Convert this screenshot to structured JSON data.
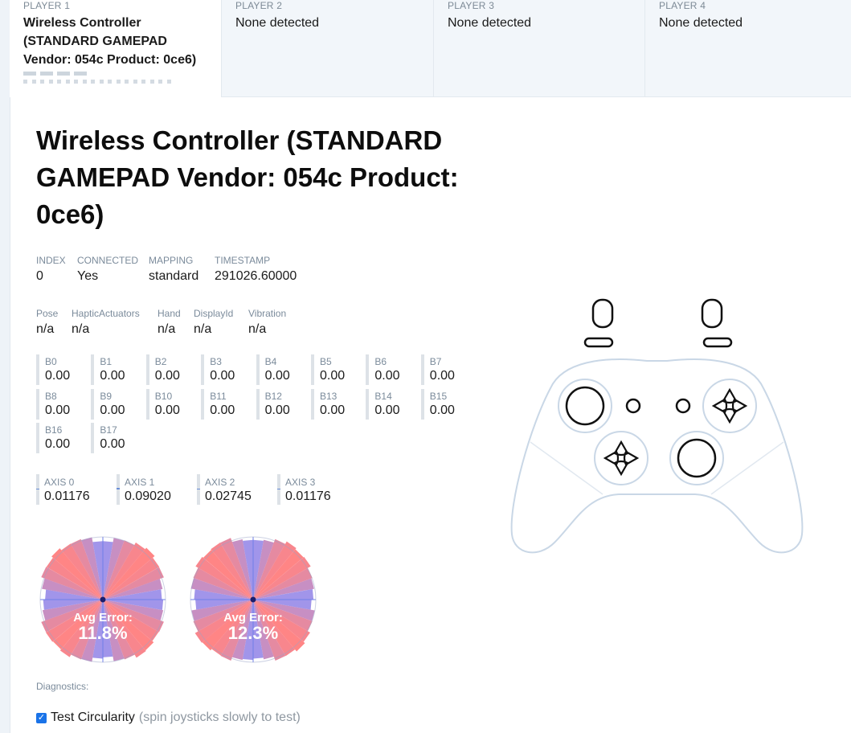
{
  "tabs": [
    {
      "label": "PLAYER 1",
      "name": "Wireless Controller (STANDARD GAMEPAD Vendor: 054c Product: 0ce6)",
      "active": true
    },
    {
      "label": "PLAYER 2",
      "name": "None detected",
      "active": false
    },
    {
      "label": "PLAYER 3",
      "name": "None detected",
      "active": false
    },
    {
      "label": "PLAYER 4",
      "name": "None detected",
      "active": false
    }
  ],
  "controller": {
    "title": "Wireless Controller (STANDARD GAMEPAD Vendor: 054c Product: 0ce6)",
    "info": [
      {
        "key": "INDEX",
        "value": "0"
      },
      {
        "key": "CONNECTED",
        "value": "Yes"
      },
      {
        "key": "MAPPING",
        "value": "standard"
      },
      {
        "key": "TIMESTAMP",
        "value": "291026.60000"
      }
    ],
    "extra": [
      {
        "key": "Pose",
        "value": "n/a"
      },
      {
        "key": "HapticActuators",
        "value": "n/a"
      },
      {
        "key": "Hand",
        "value": "n/a"
      },
      {
        "key": "DisplayId",
        "value": "n/a"
      },
      {
        "key": "Vibration",
        "value": "n/a"
      }
    ]
  },
  "buttons": [
    {
      "key": "B0",
      "value": "0.00"
    },
    {
      "key": "B1",
      "value": "0.00"
    },
    {
      "key": "B2",
      "value": "0.00"
    },
    {
      "key": "B3",
      "value": "0.00"
    },
    {
      "key": "B4",
      "value": "0.00"
    },
    {
      "key": "B5",
      "value": "0.00"
    },
    {
      "key": "B6",
      "value": "0.00"
    },
    {
      "key": "B7",
      "value": "0.00"
    },
    {
      "key": "B8",
      "value": "0.00"
    },
    {
      "key": "B9",
      "value": "0.00"
    },
    {
      "key": "B10",
      "value": "0.00"
    },
    {
      "key": "B11",
      "value": "0.00"
    },
    {
      "key": "B12",
      "value": "0.00"
    },
    {
      "key": "B13",
      "value": "0.00"
    },
    {
      "key": "B14",
      "value": "0.00"
    },
    {
      "key": "B15",
      "value": "0.00"
    },
    {
      "key": "B16",
      "value": "0.00"
    },
    {
      "key": "B17",
      "value": "0.00"
    }
  ],
  "axes": [
    {
      "key": "AXIS 0",
      "value": "0.01176",
      "level": 0.01176
    },
    {
      "key": "AXIS 1",
      "value": "0.09020",
      "level": 0.0902
    },
    {
      "key": "AXIS 2",
      "value": "0.02745",
      "level": 0.02745
    },
    {
      "key": "AXIS 3",
      "value": "0.01176",
      "level": 0.01176
    }
  ],
  "circularity": [
    {
      "label": "Avg Error:",
      "value": "11.8%"
    },
    {
      "label": "Avg Error:",
      "value": "12.3%"
    }
  ],
  "diagnostics": {
    "label": "Diagnostics:",
    "checkbox_label": "Test Circularity",
    "checkbox_hint": "(spin joysticks slowly to test)",
    "checked": true
  },
  "colors": {
    "error_red": "#ff7070",
    "error_blue": "#7a86ff",
    "gamepad_outline": "#c8d6e5",
    "checkbox": "#1a73e8"
  }
}
